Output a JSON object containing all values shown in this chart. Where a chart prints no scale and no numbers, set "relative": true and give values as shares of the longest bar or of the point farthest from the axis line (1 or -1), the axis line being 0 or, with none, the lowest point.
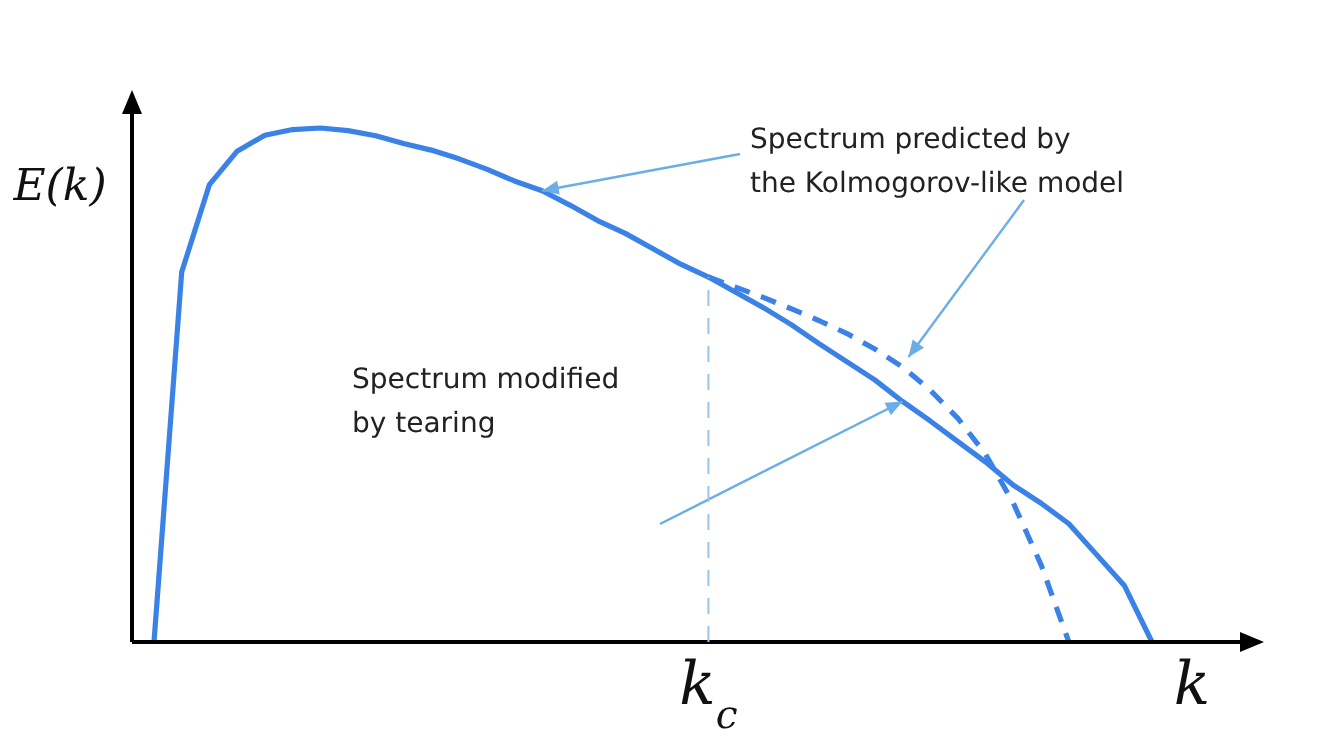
{
  "chart_data": {
    "type": "line",
    "relative": true,
    "xlabel": "k",
    "ylabel": "E(k)",
    "categories": [
      null,
      null,
      null,
      null,
      null,
      null,
      null,
      null,
      null,
      null,
      null,
      null,
      null,
      null,
      null,
      null,
      null,
      null,
      null,
      null,
      null,
      null,
      null,
      null,
      null,
      null,
      null,
      null,
      null,
      null,
      null,
      null,
      null,
      null,
      null,
      null,
      null
    ],
    "series": [
      {
        "color": "#3b82e6",
        "values": [
          0,
          0.72,
          0.89,
          0.955,
          0.986,
          0.997,
          1,
          0.995,
          0.985,
          0.97,
          0.957,
          0.94,
          0.92,
          0.897,
          0.878,
          0.85,
          0.82,
          0.795,
          0.765,
          0.735,
          0.71,
          0.68,
          0.65,
          0.617,
          0.58,
          0.545,
          0.51,
          0.468,
          0.43,
          0.39,
          0.35,
          0.305,
          0.27,
          0.23,
          0.17,
          0.11,
          0
        ]
      },
      {
        "color": "#3b82e6",
        "line_style": "dashed",
        "values": [
          null,
          null,
          null,
          null,
          null,
          null,
          null,
          null,
          null,
          null,
          null,
          null,
          null,
          null,
          null,
          null,
          null,
          null,
          null,
          null,
          0.71,
          0.69,
          0.67,
          0.648,
          0.625,
          0.6,
          0.57,
          0.535,
          0.49,
          0.435,
          0.365,
          0.27,
          0.15,
          0,
          null,
          null,
          null
        ]
      }
    ],
    "annotations": [
      "Spectrum predicted by\nthe Kolmogorov-like model",
      "Spectrum modified\nby tearing",
      "k$_{c}$"
    ]
  }
}
